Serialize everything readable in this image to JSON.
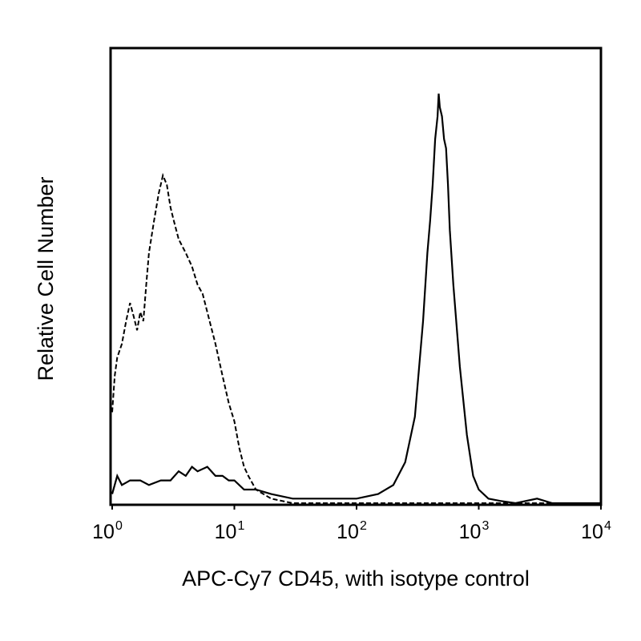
{
  "chart_data": {
    "type": "line",
    "title": "",
    "xlabel": "APC-Cy7 CD45, with isotype control",
    "ylabel": "Relative Cell Number",
    "x_scale": "log",
    "xlim": [
      1,
      10000
    ],
    "ylim": [
      0,
      100
    ],
    "x_ticks": [
      {
        "value": 1,
        "base": "10",
        "exp": "0"
      },
      {
        "value": 10,
        "base": "10",
        "exp": "1"
      },
      {
        "value": 100,
        "base": "10",
        "exp": "2"
      },
      {
        "value": 1000,
        "base": "10",
        "exp": "3"
      },
      {
        "value": 10000,
        "base": "10",
        "exp": "4"
      }
    ],
    "grid": false,
    "legend": "none",
    "series": [
      {
        "style": "solid",
        "x": [
          1,
          1.1,
          1.2,
          1.4,
          1.7,
          2,
          2.5,
          3,
          3.5,
          4,
          4.5,
          5,
          6,
          7,
          8,
          9,
          10,
          12,
          15,
          20,
          30,
          40,
          60,
          100,
          150,
          200,
          250,
          300,
          350,
          380,
          400,
          420,
          440,
          460,
          470,
          480,
          500,
          520,
          540,
          560,
          580,
          620,
          700,
          800,
          900,
          1000,
          1200,
          1500,
          2000,
          3000,
          4000,
          10000
        ],
        "y": [
          2,
          6,
          4,
          5,
          5,
          4,
          5,
          5,
          7,
          6,
          8,
          7,
          8,
          6,
          6,
          5,
          5,
          3,
          3,
          2,
          1,
          1,
          1,
          1,
          2,
          4,
          9,
          19,
          40,
          55,
          62,
          70,
          80,
          85,
          90,
          87,
          85,
          80,
          78,
          70,
          60,
          48,
          30,
          15,
          6,
          3,
          1,
          0.5,
          0,
          1,
          0,
          0
        ]
      },
      {
        "style": "dashed",
        "x": [
          1,
          1.05,
          1.1,
          1.2,
          1.3,
          1.4,
          1.5,
          1.6,
          1.7,
          1.8,
          1.9,
          2,
          2.2,
          2.4,
          2.6,
          2.8,
          3,
          3.2,
          3.5,
          4,
          4.5,
          5,
          5.5,
          6,
          7,
          8,
          9,
          10,
          11,
          12,
          13,
          15,
          20,
          30,
          40,
          60,
          100,
          10000
        ],
        "y": [
          20,
          28,
          32,
          35,
          40,
          44,
          41,
          38,
          42,
          40,
          48,
          55,
          62,
          68,
          72,
          70,
          65,
          62,
          58,
          55,
          52,
          48,
          46,
          42,
          35,
          28,
          22,
          18,
          12,
          8,
          6,
          3,
          1,
          0,
          0,
          0,
          0,
          0
        ]
      }
    ]
  }
}
